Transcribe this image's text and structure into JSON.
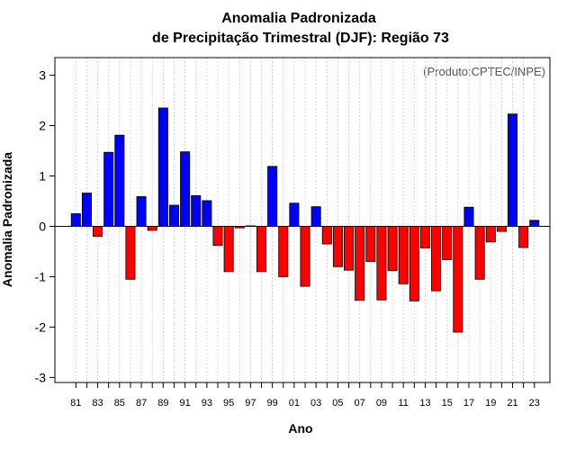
{
  "chart_data": {
    "type": "bar",
    "title": "Anomalia Padronizada",
    "subtitle": "de Precipitação Trimestral (DJF): Região 73",
    "xlabel": "Ano",
    "ylabel": "Anomalia Padronizada",
    "credit": "(Produto:CPTEC/INPE)",
    "ylim": [
      -3.1,
      3.35
    ],
    "yticks": [
      -3,
      -2,
      -1,
      0,
      1,
      2,
      3
    ],
    "ytick_labels": [
      "-3",
      "-2",
      "-1",
      "0",
      "1",
      "2",
      "3"
    ],
    "x": [
      1981,
      1982,
      1983,
      1984,
      1985,
      1986,
      1987,
      1988,
      1989,
      1990,
      1991,
      1992,
      1993,
      1994,
      1995,
      1996,
      1997,
      1998,
      1999,
      2000,
      2001,
      2002,
      2003,
      2004,
      2005,
      2006,
      2007,
      2008,
      2009,
      2010,
      2011,
      2012,
      2013,
      2014,
      2015,
      2016,
      2017,
      2018,
      2019,
      2020,
      2021,
      2022,
      2023
    ],
    "values": [
      0.25,
      0.66,
      -0.2,
      1.47,
      1.81,
      -1.05,
      0.59,
      -0.08,
      2.35,
      0.42,
      1.48,
      0.61,
      0.51,
      -0.38,
      -0.9,
      -0.03,
      0.01,
      -0.9,
      1.19,
      -1.0,
      0.46,
      -1.19,
      0.39,
      -0.35,
      -0.8,
      -0.87,
      -1.47,
      -0.7,
      -1.46,
      -0.88,
      -1.14,
      -1.48,
      -0.43,
      -1.28,
      -0.66,
      -2.1,
      0.38,
      -1.05,
      -0.31,
      -0.1,
      2.23,
      -0.42,
      0.12
    ],
    "xtick_labels": [
      "81",
      "83",
      "85",
      "87",
      "89",
      "91",
      "93",
      "95",
      "97",
      "99",
      "01",
      "03",
      "05",
      "07",
      "09",
      "11",
      "13",
      "15",
      "17",
      "19",
      "21",
      "23"
    ],
    "positive_color": "#0000ff",
    "negative_color": "#ff0000",
    "grid": true
  }
}
